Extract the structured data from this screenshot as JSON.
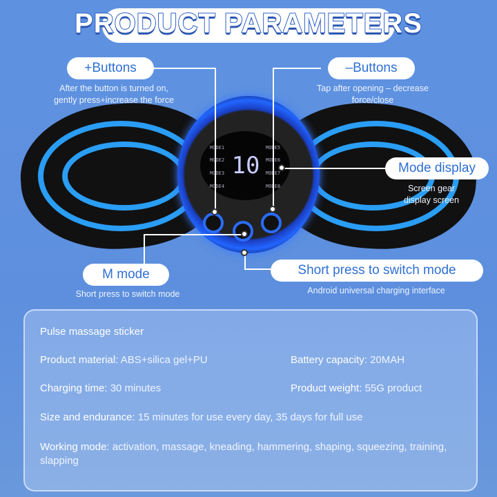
{
  "title": "PRODUCT PARAMETERS",
  "callouts": {
    "plus": {
      "label": "+Buttons",
      "desc1": "After the button is turned on,",
      "desc2": "gently press+increase the force"
    },
    "minus": {
      "label": "–Buttons",
      "desc1": "Tap after opening – decrease",
      "desc2": "force/close"
    },
    "mode_display": {
      "label": "Mode display",
      "desc1": "Screen gear",
      "desc2": "display screen"
    },
    "m_mode": {
      "label": "M mode",
      "desc": "Short press to switch mode"
    },
    "short_press": {
      "label": "Short press to switch mode",
      "desc": "Android universal charging interface"
    }
  },
  "screen": {
    "modes_left": [
      "MODE1",
      "MODE2",
      "MODE3",
      "MODE4"
    ],
    "modes_right": [
      "MODE5",
      "MODE6",
      "MODE7",
      "MODE8"
    ],
    "digit": "10"
  },
  "specs": {
    "heading": "Pulse massage sticker",
    "material_label": "Product material:",
    "material": "ABS+silica gel+PU",
    "battery_label": "Battery capacity:",
    "battery": "20MAH",
    "charging_label": "Charging time:",
    "charging": "30 minutes",
    "weight_label": "Product weight:",
    "weight": "55G product",
    "size_label": "Size and endurance:",
    "size": "15 minutes for use every day, 35 days for full use",
    "working_label": "Working mode:",
    "working": "activation, massage, kneading, hammering, shaping, squeezing, training, slapping"
  }
}
